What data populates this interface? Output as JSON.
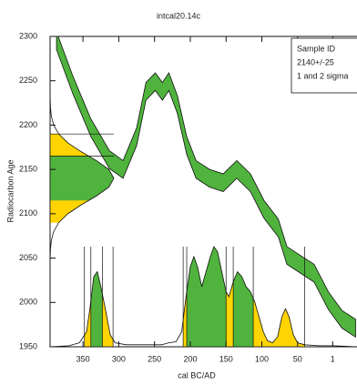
{
  "chart_data": {
    "type": "calibration",
    "title": "intcal20.14c",
    "x_label": "cal BC/AD",
    "y_label": "Radiocarbon Age",
    "legend": [
      "Sample ID",
      "2140+/-25",
      "1 and 2 sigma"
    ],
    "xlim": [
      396,
      -33
    ],
    "ylim": [
      1950,
      2300
    ],
    "xticks": [
      350,
      300,
      250,
      200,
      150,
      100,
      50,
      1
    ],
    "yticks": [
      1950,
      2000,
      2050,
      2100,
      2150,
      2200,
      2250,
      2300
    ],
    "one_sigma_color": "#4fb33d",
    "two_sigma_color": "#ffd400",
    "curve": {
      "color": "#4fb33d",
      "x": [
        387,
        364,
        339,
        313,
        294,
        275,
        262,
        249,
        239,
        230,
        218,
        205,
        192,
        173,
        154,
        135,
        116,
        97,
        77,
        65,
        46,
        27,
        7,
        -12,
        -31
      ],
      "upper": [
        2305,
        2255,
        2207,
        2171,
        2160,
        2197,
        2248,
        2259,
        2248,
        2259,
        2233,
        2187,
        2160,
        2150,
        2145,
        2160,
        2145,
        2115,
        2094,
        2063,
        2053,
        2043,
        2012,
        1991,
        1981
      ],
      "lower": [
        2285,
        2235,
        2187,
        2151,
        2140,
        2177,
        2228,
        2239,
        2228,
        2239,
        2213,
        2167,
        2140,
        2130,
        2125,
        2140,
        2125,
        2095,
        2074,
        2043,
        2033,
        2023,
        1992,
        1971,
        1961
      ]
    },
    "age_distribution": {
      "ages": [
        2240,
        2230,
        2220,
        2210,
        2200,
        2190,
        2180,
        2170,
        2160,
        2150,
        2140,
        2130,
        2120,
        2110,
        2100,
        2090,
        2080,
        2070,
        2060,
        2050,
        2040
      ],
      "density": [
        0.0003,
        0.0017,
        0.006,
        0.02,
        0.056,
        0.135,
        0.278,
        0.487,
        0.726,
        0.923,
        1,
        0.923,
        0.726,
        0.487,
        0.278,
        0.135,
        0.056,
        0.02,
        0.006,
        0.0017,
        0.0003
      ],
      "one_sigma": [
        2115,
        2165
      ],
      "two_sigma": [
        2090,
        2190
      ]
    },
    "calibrated": {
      "years": [
        396,
        370,
        355,
        345,
        340,
        335,
        330,
        325,
        318,
        312,
        305,
        290,
        260,
        240,
        230,
        220,
        212,
        206,
        200,
        195,
        190,
        184,
        178,
        172,
        167,
        162,
        156,
        150,
        146,
        140,
        134,
        128,
        122,
        116,
        110,
        104,
        98,
        92,
        85,
        78,
        72,
        67,
        62,
        56,
        50,
        40,
        20,
        0,
        -33
      ],
      "density": [
        0,
        0.01,
        0.04,
        0.15,
        0.4,
        0.7,
        0.75,
        0.6,
        0.35,
        0.12,
        0.04,
        0.02,
        0.02,
        0.02,
        0.04,
        0.05,
        0.15,
        0.5,
        0.8,
        0.9,
        0.8,
        0.6,
        0.75,
        0.9,
        1,
        0.95,
        0.75,
        0.55,
        0.5,
        0.65,
        0.75,
        0.7,
        0.6,
        0.55,
        0.45,
        0.3,
        0.15,
        0.06,
        0.04,
        0.1,
        0.3,
        0.38,
        0.3,
        0.12,
        0.04,
        0.02,
        0.01,
        0.01,
        0
      ],
      "one_sigma": [
        [
          339,
          323
        ],
        [
          205,
          150
        ],
        [
          140,
          112
        ]
      ],
      "two_sigma": [
        [
          348,
          308
        ],
        [
          210,
          40
        ]
      ]
    }
  }
}
